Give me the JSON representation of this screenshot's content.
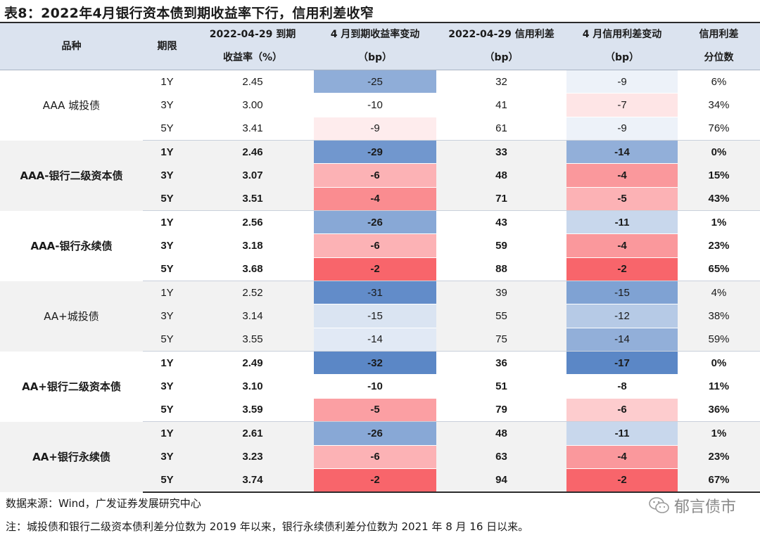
{
  "title": "表8：2022年4月银行资本债到期收益率下行，信用利差收窄",
  "header": {
    "col_variety": "品种",
    "col_term": "期限",
    "col_ytm_line1": "2022-04-29 到期",
    "col_ytm_line2": "收益率（%）",
    "col_ytm_change_line1": "4 月到期收益率变动",
    "col_ytm_change_line2": "（bp）",
    "col_spread_line1": "2022-04-29 信用利差",
    "col_spread_line2": "（bp）",
    "col_spread_change_line1": "4 月信用利差变动",
    "col_spread_change_line2": "（bp）",
    "col_pct_line1": "信用利差",
    "col_pct_line2": "分位数"
  },
  "colors": {
    "header_bg": "#dbe3ef",
    "group_alt_bg": "#f2f2f2",
    "negative_strong": "#5b87c6",
    "positive_strong": "#f8656b"
  },
  "groups": [
    {
      "name": "AAA 城投债",
      "bold": false,
      "shaded": false,
      "rows": [
        {
          "term": "1Y",
          "ytm": "2.45",
          "ytm_change": "-25",
          "spread": "32",
          "spread_change": "-9",
          "percentile": "6%"
        },
        {
          "term": "3Y",
          "ytm": "3.00",
          "ytm_change": "-10",
          "spread": "41",
          "spread_change": "-7",
          "percentile": "34%"
        },
        {
          "term": "5Y",
          "ytm": "3.41",
          "ytm_change": "-9",
          "spread": "61",
          "spread_change": "-9",
          "percentile": "76%"
        }
      ]
    },
    {
      "name": "AAA-银行二级资本债",
      "bold": true,
      "shaded": true,
      "rows": [
        {
          "term": "1Y",
          "ytm": "2.46",
          "ytm_change": "-29",
          "spread": "33",
          "spread_change": "-14",
          "percentile": "0%"
        },
        {
          "term": "3Y",
          "ytm": "3.07",
          "ytm_change": "-6",
          "spread": "48",
          "spread_change": "-4",
          "percentile": "15%"
        },
        {
          "term": "5Y",
          "ytm": "3.51",
          "ytm_change": "-4",
          "spread": "71",
          "spread_change": "-5",
          "percentile": "43%"
        }
      ]
    },
    {
      "name": "AAA-银行永续债",
      "bold": true,
      "shaded": false,
      "rows": [
        {
          "term": "1Y",
          "ytm": "2.56",
          "ytm_change": "-26",
          "spread": "43",
          "spread_change": "-11",
          "percentile": "1%"
        },
        {
          "term": "3Y",
          "ytm": "3.18",
          "ytm_change": "-6",
          "spread": "59",
          "spread_change": "-4",
          "percentile": "23%"
        },
        {
          "term": "5Y",
          "ytm": "3.68",
          "ytm_change": "-2",
          "spread": "88",
          "spread_change": "-2",
          "percentile": "65%"
        }
      ]
    },
    {
      "name": "AA+城投债",
      "bold": false,
      "shaded": true,
      "rows": [
        {
          "term": "1Y",
          "ytm": "2.52",
          "ytm_change": "-31",
          "spread": "39",
          "spread_change": "-15",
          "percentile": "4%"
        },
        {
          "term": "3Y",
          "ytm": "3.14",
          "ytm_change": "-15",
          "spread": "55",
          "spread_change": "-12",
          "percentile": "38%"
        },
        {
          "term": "5Y",
          "ytm": "3.55",
          "ytm_change": "-14",
          "spread": "75",
          "spread_change": "-14",
          "percentile": "59%"
        }
      ]
    },
    {
      "name": "AA+银行二级资本债",
      "bold": true,
      "shaded": false,
      "rows": [
        {
          "term": "1Y",
          "ytm": "2.49",
          "ytm_change": "-32",
          "spread": "36",
          "spread_change": "-17",
          "percentile": "0%"
        },
        {
          "term": "3Y",
          "ytm": "3.10",
          "ytm_change": "-10",
          "spread": "51",
          "spread_change": "-8",
          "percentile": "11%"
        },
        {
          "term": "5Y",
          "ytm": "3.59",
          "ytm_change": "-5",
          "spread": "79",
          "spread_change": "-6",
          "percentile": "36%"
        }
      ]
    },
    {
      "name": "AA+银行永续债",
      "bold": true,
      "shaded": true,
      "rows": [
        {
          "term": "1Y",
          "ytm": "2.61",
          "ytm_change": "-26",
          "spread": "48",
          "spread_change": "-11",
          "percentile": "1%"
        },
        {
          "term": "3Y",
          "ytm": "3.23",
          "ytm_change": "-6",
          "spread": "63",
          "spread_change": "-4",
          "percentile": "23%"
        },
        {
          "term": "5Y",
          "ytm": "3.74",
          "ytm_change": "-2",
          "spread": "94",
          "spread_change": "-2",
          "percentile": "67%"
        }
      ]
    }
  ],
  "footer": {
    "source": "数据来源：Wind，广发证券发展研究中心",
    "note": "注：城投债和银行二级资本债利差分位数为 2019 年以来，银行永续债利差分位数为 2021 年 8 月 16 日以来。",
    "brand_name": "郁言债市",
    "brand_icon": "wechat-icon"
  }
}
